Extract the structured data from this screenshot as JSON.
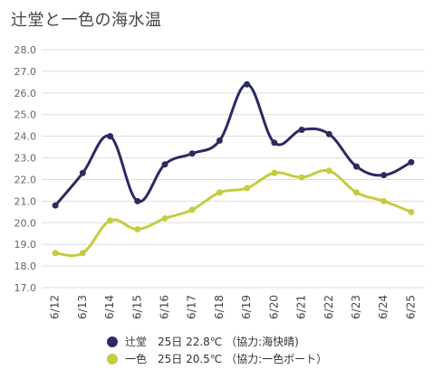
{
  "chart_data": {
    "type": "line",
    "title": "辻堂と一色の海水温",
    "categories": [
      "6/12",
      "6/13",
      "6/14",
      "6/15",
      "6/16",
      "6/17",
      "6/18",
      "6/19",
      "6/20",
      "6/21",
      "6/22",
      "6/23",
      "6/24",
      "6/25"
    ],
    "ylim": [
      17.0,
      28.0
    ],
    "yticks": [
      "17.0",
      "18.0",
      "19.0",
      "20.0",
      "21.0",
      "22.0",
      "23.0",
      "24.0",
      "25.0",
      "26.0",
      "27.0",
      "28.0"
    ],
    "grid": true,
    "legend_position": "bottom",
    "series": [
      {
        "name": "辻堂",
        "legend_text": "辻堂　25日 22.8℃ （協力:海快晴)",
        "color": "#2c2a63",
        "values": [
          20.8,
          22.3,
          24.0,
          21.0,
          22.7,
          23.2,
          23.8,
          26.4,
          23.7,
          24.3,
          24.1,
          22.6,
          22.2,
          22.8
        ]
      },
      {
        "name": "一色",
        "legend_text": "一色　25日 20.5℃ （協力:一色ボート）",
        "color": "#c5cc3f",
        "values": [
          18.6,
          18.6,
          20.1,
          19.7,
          20.2,
          20.6,
          21.4,
          21.6,
          22.3,
          22.1,
          22.4,
          21.4,
          21.0,
          20.5
        ]
      }
    ]
  }
}
